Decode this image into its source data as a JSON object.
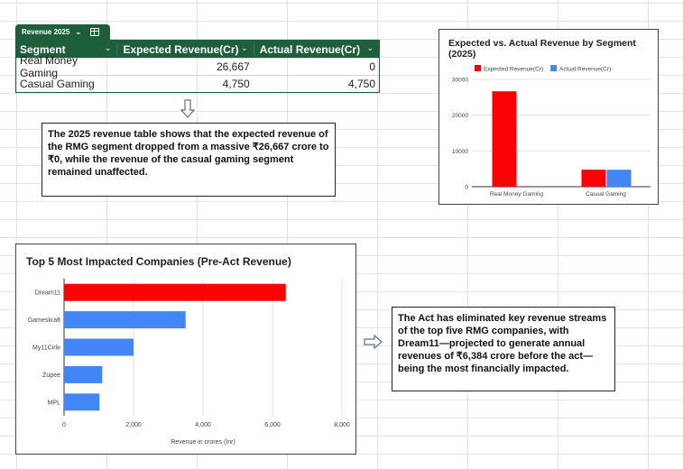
{
  "table": {
    "tab_label": "Revenue 2025",
    "headers": [
      "Segment",
      "Expected Revenue(Cr)",
      "Actual Revenue(Cr)"
    ],
    "rows": [
      [
        "Real Money Gaming",
        "26,667",
        "0"
      ],
      [
        "Casual Gaming",
        "4,750",
        "4,750"
      ]
    ]
  },
  "note_top": "The 2025 revenue table shows that the expected revenue of the RMG segment dropped from a massive ₹26,667 crore to ₹0, while the revenue of the casual gaming segment remained unaffected.",
  "note_bottom": "The Act has eliminated key revenue streams of the top five RMG companies, with Dream11—projected to generate annual revenues of ₹6,384 crore before the act—being the most financially impacted.",
  "chart_data": [
    {
      "type": "bar",
      "title": "Expected vs. Actual Revenue by Segment (2025)",
      "categories": [
        "Real Money Gaming",
        "Casual Gaming"
      ],
      "series": [
        {
          "name": "Expected Revenue(Cr)",
          "values": [
            26667,
            4750
          ],
          "color": "#ff0000"
        },
        {
          "name": "Actual Revenue(Cr)",
          "values": [
            0,
            4750
          ],
          "color": "#4285f4"
        }
      ],
      "ylim": [
        0,
        30000
      ],
      "yticks": [
        "0",
        "10000",
        "20000",
        "30000"
      ],
      "legend": "top",
      "grid": true
    },
    {
      "type": "bar",
      "orientation": "horizontal",
      "title": "Top 5 Most Impacted Companies (Pre-Act Revenue)",
      "categories": [
        "Dream11",
        "Gameskraft",
        "My11Cirle",
        "Zupee",
        "MPL"
      ],
      "values": [
        6384,
        3500,
        2000,
        1100,
        1020
      ],
      "colors": [
        "#ff0000",
        "#4285f4",
        "#4285f4",
        "#4285f4",
        "#4285f4"
      ],
      "xlabel": "Revenue in crores (Inr)",
      "xlim": [
        0,
        8000
      ],
      "xticks": [
        "0",
        "2,000",
        "4,000",
        "6,000",
        "8,000"
      ],
      "grid": true
    }
  ]
}
